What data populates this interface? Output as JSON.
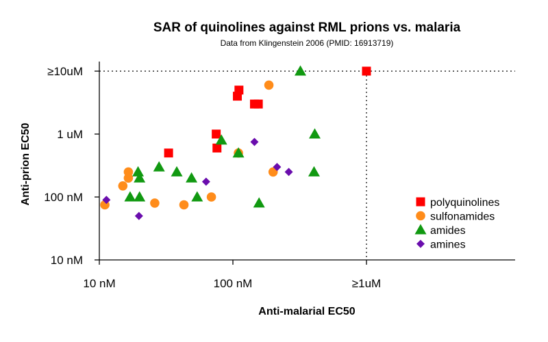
{
  "chart_data": {
    "type": "scatter",
    "title": "SAR of quinolines against RML prions vs. malaria",
    "subtitle": "Data from Klingenstein 2006 (PMID: 16913719)",
    "xlabel": "Anti-malarial EC50",
    "ylabel": "Anti-prion EC50",
    "x_scale": "log",
    "y_scale": "log",
    "x_ticks": [
      {
        "value": 10,
        "label": "10 nM"
      },
      {
        "value": 100,
        "label": "100 nM"
      },
      {
        "value": 1000,
        "label": "≥1uM"
      }
    ],
    "y_ticks": [
      {
        "value": 10,
        "label": "10 nM"
      },
      {
        "value": 100,
        "label": "100 nM"
      },
      {
        "value": 1000,
        "label": "1 uM"
      },
      {
        "value": 10000,
        "label": "≥10uM"
      }
    ],
    "reference_lines": {
      "x": 1000,
      "y": 10000
    },
    "legend_position": "right",
    "series": [
      {
        "name": "polyquinolines",
        "marker": "square",
        "color": "#ff0000",
        "points": [
          {
            "x": 33,
            "y": 500
          },
          {
            "x": 75,
            "y": 1000
          },
          {
            "x": 76,
            "y": 600
          },
          {
            "x": 108,
            "y": 4000
          },
          {
            "x": 111,
            "y": 5000
          },
          {
            "x": 145,
            "y": 3000
          },
          {
            "x": 155,
            "y": 3000
          },
          {
            "x": 1000,
            "y": 10000
          }
        ]
      },
      {
        "name": "sulfonamides",
        "marker": "circle",
        "color": "#ff8c1a",
        "points": [
          {
            "x": 11,
            "y": 75
          },
          {
            "x": 15,
            "y": 150
          },
          {
            "x": 16.5,
            "y": 250
          },
          {
            "x": 16.5,
            "y": 200
          },
          {
            "x": 26,
            "y": 80
          },
          {
            "x": 43,
            "y": 75
          },
          {
            "x": 69,
            "y": 100
          },
          {
            "x": 110,
            "y": 500
          },
          {
            "x": 186,
            "y": 6000
          },
          {
            "x": 200,
            "y": 250
          }
        ]
      },
      {
        "name": "amides",
        "marker": "triangle",
        "color": "#119911",
        "points": [
          {
            "x": 17,
            "y": 100
          },
          {
            "x": 19.5,
            "y": 250
          },
          {
            "x": 20,
            "y": 200
          },
          {
            "x": 20,
            "y": 100
          },
          {
            "x": 28,
            "y": 300
          },
          {
            "x": 38,
            "y": 250
          },
          {
            "x": 49,
            "y": 200
          },
          {
            "x": 54,
            "y": 100
          },
          {
            "x": 82,
            "y": 800
          },
          {
            "x": 110,
            "y": 500
          },
          {
            "x": 157,
            "y": 80
          },
          {
            "x": 320,
            "y": 10000
          },
          {
            "x": 410,
            "y": 1000
          },
          {
            "x": 405,
            "y": 250
          }
        ]
      },
      {
        "name": "amines",
        "marker": "diamond",
        "color": "#6a0dad",
        "points": [
          {
            "x": 11.3,
            "y": 90
          },
          {
            "x": 19.8,
            "y": 50
          },
          {
            "x": 63,
            "y": 175
          },
          {
            "x": 145,
            "y": 750
          },
          {
            "x": 214,
            "y": 300
          },
          {
            "x": 262,
            "y": 250
          }
        ]
      }
    ]
  }
}
